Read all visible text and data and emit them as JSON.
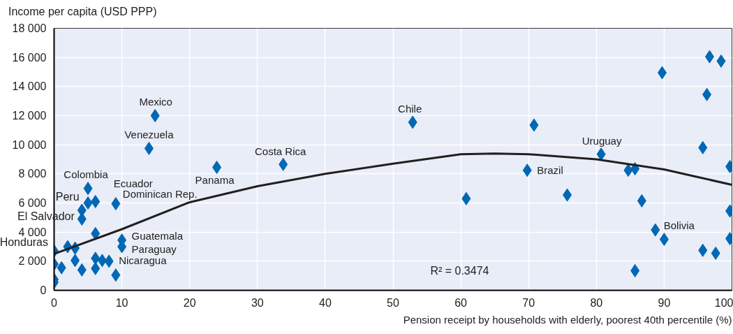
{
  "chart_data": {
    "type": "scatter",
    "xlabel": "Pension receipt by households with elderly, poorest 40th percentile (%)",
    "ylabel": "Income per capita (USD PPP)",
    "xlim": [
      0,
      100
    ],
    "ylim": [
      0,
      18000
    ],
    "xticks": [
      0,
      10,
      20,
      30,
      40,
      50,
      60,
      70,
      80,
      90,
      100
    ],
    "yticks": [
      0,
      {
        "value": 2000,
        "label": "2 000"
      },
      {
        "value": 4000,
        "label": "4 000"
      },
      {
        "value": 6000,
        "label": "6 000"
      },
      {
        "value": 8000,
        "label": "8 000"
      },
      {
        "value": 10000,
        "label": "10 000"
      },
      {
        "value": 12000,
        "label": "12 000"
      },
      {
        "value": 14000,
        "label": "14 000"
      },
      {
        "value": 16000,
        "label": "16 000"
      },
      {
        "value": 18000,
        "label": "18 000"
      }
    ],
    "grid": true,
    "marker": "diamond",
    "series": [
      {
        "color": "#0068b4",
        "x": [
          5,
          5,
          6.1,
          4.1,
          4.1,
          9.1,
          6.1,
          0,
          2,
          3.1,
          10,
          10,
          0,
          1.1,
          3.1,
          6.1,
          7.1,
          8.1,
          4.1,
          6.1,
          9.1,
          0,
          0,
          14.9,
          14,
          24,
          33.8,
          52.9,
          60.8,
          69.8,
          70.8,
          75.7,
          80.7,
          96.7,
          98.4,
          89.7,
          96.3,
          95.7,
          84.7,
          85.7,
          99.7,
          86.7,
          99.7,
          88.7,
          90,
          99.7,
          95.7,
          97.6,
          85.7
        ],
        "values": [
          7000,
          6000,
          6100,
          5500,
          4900,
          5950,
          3900,
          2700,
          3000,
          2900,
          3450,
          3000,
          1800,
          1550,
          2050,
          2200,
          2050,
          2000,
          1400,
          1500,
          1050,
          750,
          550,
          12000,
          9750,
          8450,
          8650,
          11550,
          6300,
          8250,
          11350,
          6550,
          9350,
          16050,
          15750,
          14950,
          13450,
          9800,
          8250,
          8350,
          8500,
          6150,
          5450,
          4150,
          3500,
          3550,
          2750,
          2550,
          1350
        ]
      },
      {
        "type": "line",
        "color": "#231f20",
        "marker": "none",
        "x": [
          0,
          10,
          20,
          30,
          40,
          50,
          60,
          65,
          70,
          80,
          90,
          100
        ],
        "values": [
          2500,
          4200,
          6050,
          7150,
          8000,
          8700,
          9350,
          9400,
          9350,
          9000,
          8300,
          7250
        ]
      }
    ],
    "annotations": [
      {
        "text": "Mexico",
        "x": 14.9,
        "y": 12000
      },
      {
        "text": "Venezuela",
        "x": 14,
        "y": 9750
      },
      {
        "text": "Colombia",
        "x": 5,
        "y": 7000
      },
      {
        "text": "Peru",
        "x": 5,
        "y": 6000
      },
      {
        "text": "Ecuador",
        "x": 9.1,
        "y": 5950
      },
      {
        "text": "Dominican Rep.",
        "x": 9.1,
        "y": 5950
      },
      {
        "text": "El Salvador",
        "x": 4.1,
        "y": 4900
      },
      {
        "text": "Honduras",
        "x": 0,
        "y": 2700
      },
      {
        "text": "Guatemala",
        "x": 10,
        "y": 3450
      },
      {
        "text": "Paraguay",
        "x": 10,
        "y": 3000
      },
      {
        "text": "Nicaragua",
        "x": 8.1,
        "y": 2000
      },
      {
        "text": "Panama",
        "x": 24,
        "y": 8450
      },
      {
        "text": "Costa Rica",
        "x": 33.8,
        "y": 8650
      },
      {
        "text": "Chile",
        "x": 52.9,
        "y": 11550
      },
      {
        "text": "Brazil",
        "x": 69.8,
        "y": 8250
      },
      {
        "text": "Uruguay",
        "x": 80.7,
        "y": 9350
      },
      {
        "text": "Bolivia",
        "x": 88.7,
        "y": 4150
      },
      "R² = 0.3474"
    ]
  }
}
